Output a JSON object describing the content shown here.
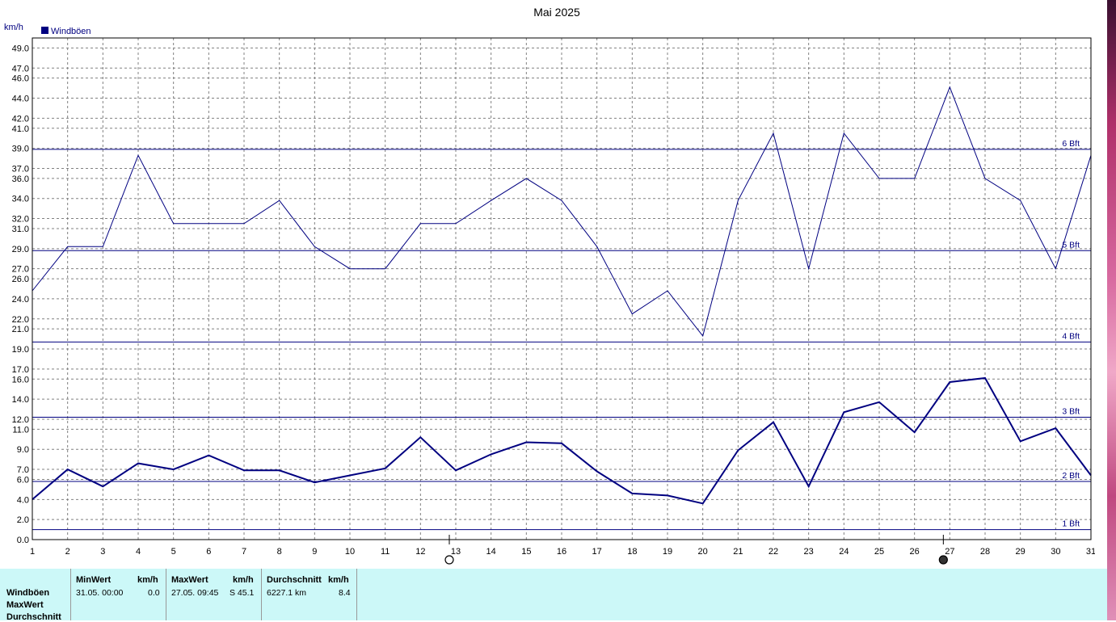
{
  "chart_data": {
    "type": "line",
    "title": "Mai 2025",
    "ylabel": "km/h",
    "legend": {
      "label": "Windböen",
      "placement": "top-left"
    },
    "x": [
      1,
      2,
      3,
      4,
      5,
      6,
      7,
      8,
      9,
      10,
      11,
      12,
      13,
      14,
      15,
      16,
      17,
      18,
      19,
      20,
      21,
      22,
      23,
      24,
      25,
      26,
      27,
      28,
      29,
      30,
      31
    ],
    "xlim": [
      1,
      31
    ],
    "ylim": [
      0,
      50
    ],
    "y_ticks": [
      "0.0",
      "2.0",
      "4.0",
      "6.0",
      "7.0",
      "9.0",
      "11.0",
      "12.0",
      "14.0",
      "16.0",
      "17.0",
      "19.0",
      "21.0",
      "22.0",
      "24.0",
      "26.0",
      "27.0",
      "29.0",
      "31.0",
      "32.0",
      "34.0",
      "36.0",
      "37.0",
      "39.0",
      "41.0",
      "42.0",
      "44.0",
      "46.0",
      "47.0",
      "49.0"
    ],
    "grid": true,
    "series": [
      {
        "name": "MaxWert",
        "color": "#000080",
        "width": 1,
        "values": [
          24.8,
          29.2,
          29.2,
          38.3,
          31.5,
          31.5,
          31.5,
          33.8,
          29.2,
          27.0,
          27.0,
          31.5,
          31.5,
          33.8,
          36.0,
          33.8,
          29.2,
          22.5,
          24.8,
          20.3,
          33.8,
          40.5,
          27.0,
          40.5,
          36.0,
          36.0,
          45.1,
          36.0,
          33.8,
          27.0,
          38.3
        ]
      },
      {
        "name": "Durchschnitt",
        "color": "#000080",
        "width": 2,
        "values": [
          4.0,
          7.0,
          5.3,
          7.6,
          7.0,
          8.4,
          6.9,
          6.9,
          5.7,
          6.4,
          7.1,
          10.2,
          6.9,
          8.5,
          9.7,
          9.6,
          6.8,
          4.6,
          4.4,
          3.6,
          8.9,
          11.7,
          5.3,
          12.7,
          13.7,
          10.7,
          15.7,
          16.1,
          9.8,
          11.1,
          6.4
        ]
      }
    ],
    "reference_lines": [
      {
        "label": "1 Bft",
        "value": 1.0
      },
      {
        "label": "2 Bft",
        "value": 5.8
      },
      {
        "label": "3 Bft",
        "value": 12.2
      },
      {
        "label": "4 Bft",
        "value": 19.7
      },
      {
        "label": "5 Bft",
        "value": 28.8
      },
      {
        "label": "6 Bft",
        "value": 38.9
      }
    ],
    "moon_markers": [
      {
        "day": 13,
        "phase": "full"
      },
      {
        "day": 27,
        "phase": "new"
      }
    ],
    "colors": {
      "line": "#000080",
      "grid": "#808080",
      "stats_background": "#ccf8f8"
    }
  },
  "stats": {
    "row_labels": [
      "Windböen",
      "MaxWert",
      "Durchschnitt"
    ],
    "min": {
      "header": "MinWert",
      "unit": "km/h",
      "date": "31.05.  00:00",
      "value": "0.0"
    },
    "max": {
      "header": "MaxWert",
      "unit": "km/h",
      "date": "27.05.  09:45",
      "value": "S 45.1"
    },
    "avg": {
      "header": "Durchschnitt",
      "unit": "km/h",
      "distance": "6227.1 km",
      "value": "8.4"
    }
  }
}
